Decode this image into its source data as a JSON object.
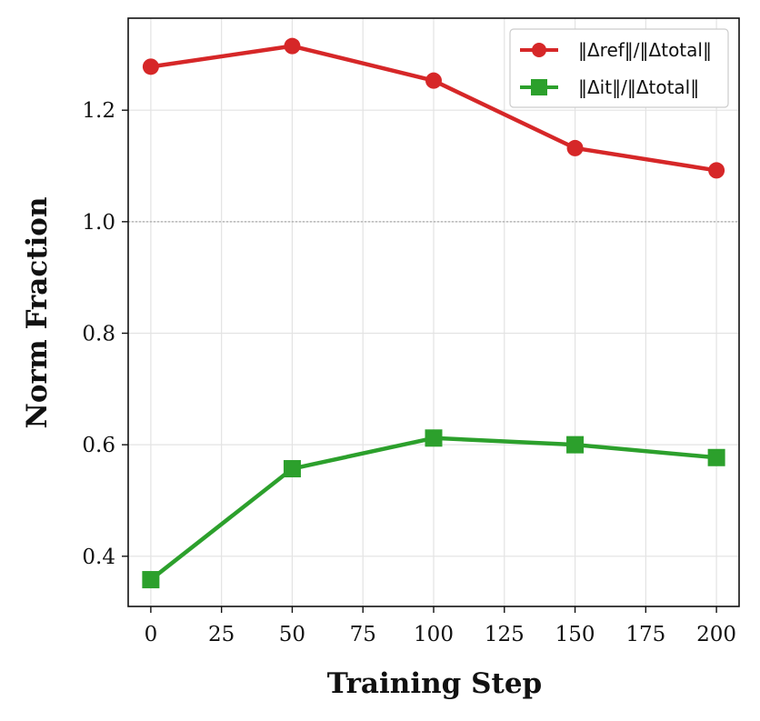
{
  "chart_data": {
    "type": "line",
    "xlabel": "Training Step",
    "ylabel": "Norm Fraction",
    "xlim": [
      -8,
      208
    ],
    "ylim": [
      0.31,
      1.365
    ],
    "xticks": [
      0,
      25,
      50,
      75,
      100,
      125,
      150,
      175,
      200
    ],
    "xtick_labels": [
      "0",
      "25",
      "50",
      "75",
      "100",
      "125",
      "150",
      "175",
      "200"
    ],
    "yticks": [
      0.4,
      0.6,
      0.8,
      1.0,
      1.2
    ],
    "ytick_labels": [
      "0.4",
      "0.6",
      "0.8",
      "1.0",
      "1.2"
    ],
    "grid": true,
    "reference_line": 1.0,
    "legend_position": "top-right",
    "x": [
      0,
      50,
      100,
      150,
      200
    ],
    "series": [
      {
        "name": "‖Δref‖/‖Δtotal‖",
        "values": [
          1.278,
          1.315,
          1.253,
          1.132,
          1.092
        ],
        "color": "#d62728",
        "marker": "circle"
      },
      {
        "name": "‖Δit‖/‖Δtotal‖",
        "values": [
          0.358,
          0.557,
          0.612,
          0.6,
          0.577
        ],
        "color": "#2ca02c",
        "marker": "square"
      }
    ]
  }
}
